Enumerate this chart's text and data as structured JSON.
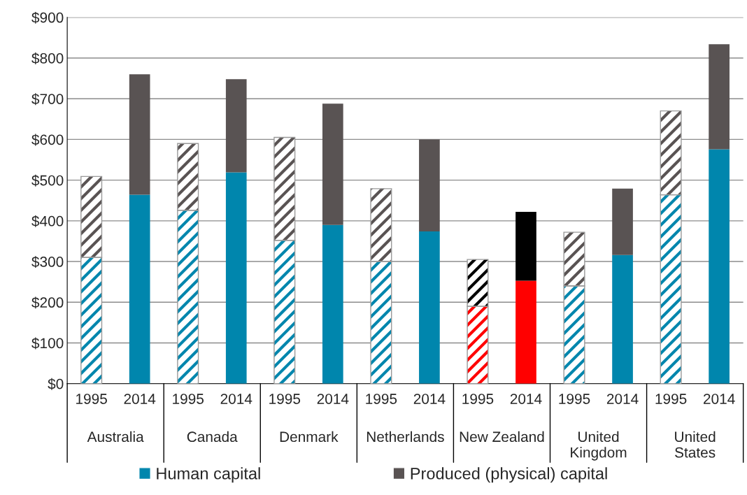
{
  "chart_data": {
    "type": "bar",
    "stacked": true,
    "categories": [
      "1995",
      "2014",
      "1995",
      "2014",
      "1995",
      "2014",
      "1995",
      "2014",
      "1995",
      "2014",
      "1995",
      "2014",
      "1995",
      "2014"
    ],
    "annotations": [
      "Australia",
      "Canada",
      "Denmark",
      "Netherlands",
      "New Zealand",
      "United Kingdom",
      "United States"
    ],
    "series": [
      {
        "name": "Human capital",
        "color": "#0086ad",
        "colors": [
          "#0086ad",
          "#0086ad",
          "#0086ad",
          "#0086ad",
          "#0086ad",
          "#0086ad",
          "#0086ad",
          "#0086ad",
          "#ff0000",
          "#ff0000",
          "#0086ad",
          "#0086ad",
          "#0086ad",
          "#0086ad"
        ],
        "values": [
          310,
          464,
          426,
          519,
          352,
          390,
          300,
          374,
          190,
          253,
          240,
          316,
          464,
          576
        ]
      },
      {
        "name": "Produced (physical) capital",
        "color": "#595353",
        "colors": [
          "#595353",
          "#595353",
          "#595353",
          "#595353",
          "#595353",
          "#595353",
          "#595353",
          "#595353",
          "#000000",
          "#000000",
          "#595353",
          "#595353",
          "#595353",
          "#595353"
        ],
        "values": [
          199,
          296,
          164,
          229,
          253,
          298,
          179,
          226,
          115,
          169,
          132,
          163,
          206,
          258
        ]
      }
    ],
    "ylim": [
      0,
      900
    ],
    "yticks": [
      {
        "value": 0,
        "label": "$0"
      },
      {
        "value": 100,
        "label": "$100"
      },
      {
        "value": 200,
        "label": "$200"
      },
      {
        "value": 300,
        "label": "$300"
      },
      {
        "value": 400,
        "label": "$400"
      },
      {
        "value": 500,
        "label": "$500"
      },
      {
        "value": 600,
        "label": "$600"
      },
      {
        "value": 700,
        "label": "$700"
      },
      {
        "value": 800,
        "label": "$800"
      },
      {
        "value": 900,
        "label": "$900"
      }
    ],
    "grid": "y",
    "legend": "bottom"
  }
}
